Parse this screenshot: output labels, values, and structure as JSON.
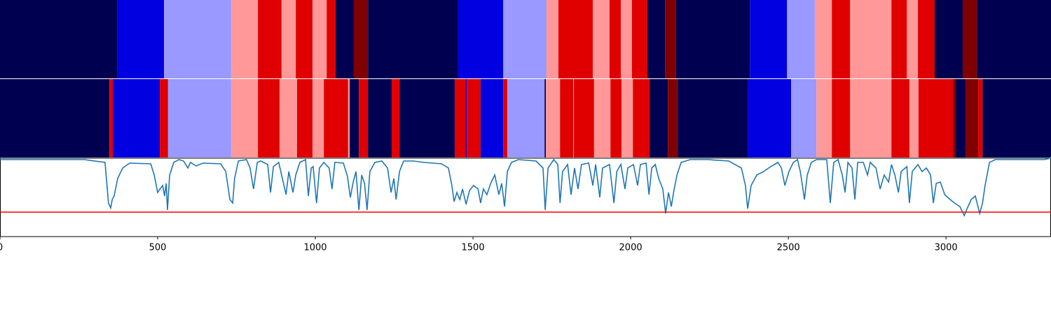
{
  "chart_data": {
    "type": "segments",
    "xlim": [
      0,
      3333
    ],
    "xticks": [
      0,
      500,
      1000,
      1500,
      2000,
      2500,
      3000
    ],
    "palette": [
      "#000050",
      "#0000e0",
      "#9999ff",
      "#ff9999",
      "#e00000",
      "#800000"
    ],
    "tracks": [
      {
        "edges": [
          0,
          373,
          520,
          733,
          818,
          893,
          938,
          991,
          1036,
          1064,
          1122,
          1167,
          1453,
          1596,
          1733,
          1771,
          1880,
          1933,
          1969,
          2004,
          2053,
          2109,
          2144,
          2378,
          2496,
          2584,
          2638,
          2696,
          2827,
          2876,
          2911,
          2964,
          3053,
          3098,
          3333
        ],
        "classes": [
          0,
          1,
          2,
          3,
          4,
          3,
          4,
          3,
          4,
          0,
          5,
          0,
          1,
          2,
          3,
          4,
          3,
          4,
          3,
          4,
          0,
          5,
          0,
          1,
          2,
          3,
          4,
          3,
          4,
          3,
          4,
          0,
          5,
          0
        ]
      },
      {
        "edges": [
          0,
          347,
          358,
          507,
          533,
          733,
          818,
          887,
          942,
          991,
          1027,
          1104,
          1109,
          1138,
          1167,
          1242,
          1267,
          1442,
          1476,
          1480,
          1524,
          1596,
          1609,
          1727,
          1731,
          1776,
          1818,
          1820,
          1884,
          1936,
          1971,
          2007,
          2060,
          2118,
          2149,
          2371,
          2509,
          2589,
          2638,
          2696,
          2827,
          2884,
          2913,
          3022,
          3031,
          3062,
          3102,
          3116,
          3333
        ],
        "classes": [
          0,
          4,
          1,
          4,
          2,
          3,
          4,
          3,
          4,
          3,
          4,
          3,
          0,
          4,
          0,
          4,
          0,
          4,
          1,
          4,
          1,
          4,
          2,
          0,
          3,
          4,
          3,
          4,
          3,
          4,
          3,
          4,
          0,
          5,
          0,
          1,
          2,
          3,
          4,
          3,
          4,
          3,
          4,
          5,
          0,
          5,
          4,
          0
        ]
      }
    ],
    "line": {
      "color": "#1f77b4",
      "ylim": [
        0,
        112
      ],
      "x": [
        0,
        267,
        333,
        344,
        351,
        356,
        362,
        373,
        389,
        411,
        478,
        489,
        500,
        507,
        516,
        522,
        527,
        531,
        538,
        551,
        567,
        582,
        596,
        604,
        622,
        644,
        700,
        716,
        729,
        738,
        744,
        756,
        782,
        793,
        804,
        816,
        827,
        849,
        858,
        867,
        884,
        907,
        916,
        929,
        938,
        951,
        969,
        978,
        987,
        993,
        1004,
        1013,
        1027,
        1044,
        1053,
        1062,
        1089,
        1102,
        1111,
        1120,
        1129,
        1138,
        1147,
        1156,
        1164,
        1173,
        1189,
        1211,
        1229,
        1240,
        1249,
        1256,
        1267,
        1280,
        1311,
        1344,
        1400,
        1422,
        1433,
        1440,
        1449,
        1458,
        1467,
        1478,
        1489,
        1502,
        1516,
        1524,
        1533,
        1544,
        1556,
        1569,
        1582,
        1591,
        1600,
        1609,
        1622,
        1644,
        1700,
        1722,
        1729,
        1738,
        1756,
        1769,
        1776,
        1784,
        1800,
        1811,
        1822,
        1833,
        1844,
        1867,
        1880,
        1889,
        1902,
        1911,
        1933,
        1947,
        1956,
        1969,
        1982,
        1991,
        2009,
        2022,
        2031,
        2049,
        2058,
        2067,
        2078,
        2089,
        2102,
        2111,
        2120,
        2129,
        2138,
        2147,
        2160,
        2189,
        2244,
        2311,
        2351,
        2364,
        2371,
        2382,
        2400,
        2422,
        2444,
        2467,
        2478,
        2489,
        2502,
        2516,
        2529,
        2538,
        2551,
        2560,
        2573,
        2589,
        2622,
        2633,
        2644,
        2658,
        2671,
        2680,
        2689,
        2702,
        2711,
        2720,
        2738,
        2751,
        2760,
        2778,
        2791,
        2804,
        2818,
        2827,
        2838,
        2849,
        2858,
        2876,
        2884,
        2893,
        2911,
        2924,
        2938,
        2951,
        2960,
        2969,
        2982,
        2996,
        3013,
        3027,
        3044,
        3058,
        3067,
        3080,
        3093,
        3107,
        3116,
        3124,
        3138,
        3156,
        3311,
        3333
      ],
      "values": [
        110,
        110,
        106,
        48,
        41,
        53,
        58,
        83,
        98,
        105,
        104,
        88,
        63,
        68,
        73,
        58,
        76,
        38,
        88,
        106,
        110,
        108,
        98,
        106,
        101,
        105,
        104,
        93,
        53,
        48,
        83,
        108,
        110,
        98,
        68,
        106,
        108,
        103,
        63,
        100,
        106,
        60,
        93,
        63,
        88,
        106,
        110,
        58,
        98,
        100,
        48,
        98,
        106,
        98,
        68,
        106,
        105,
        86,
        56,
        78,
        93,
        38,
        88,
        76,
        38,
        93,
        106,
        108,
        98,
        63,
        83,
        53,
        93,
        108,
        108,
        106,
        104,
        98,
        73,
        50,
        63,
        53,
        68,
        46,
        66,
        73,
        68,
        48,
        68,
        60,
        76,
        88,
        60,
        76,
        43,
        93,
        106,
        110,
        108,
        98,
        38,
        98,
        110,
        103,
        48,
        93,
        103,
        60,
        98,
        68,
        103,
        105,
        73,
        103,
        56,
        98,
        103,
        48,
        93,
        103,
        68,
        98,
        103,
        73,
        103,
        105,
        60,
        98,
        103,
        83,
        68,
        33,
        63,
        43,
        68,
        88,
        106,
        110,
        110,
        108,
        98,
        73,
        40,
        73,
        88,
        93,
        100,
        106,
        98,
        73,
        93,
        106,
        110,
        93,
        53,
        88,
        106,
        110,
        110,
        48,
        106,
        110,
        88,
        63,
        106,
        98,
        53,
        106,
        106,
        88,
        106,
        98,
        68,
        88,
        78,
        103,
        88,
        63,
        93,
        100,
        48,
        93,
        103,
        93,
        98,
        88,
        48,
        76,
        78,
        60,
        53,
        48,
        43,
        30,
        40,
        53,
        58,
        33,
        48,
        73,
        106,
        110,
        110,
        112
      ]
    },
    "threshold": {
      "value": 35,
      "color": "#ff0000"
    }
  }
}
